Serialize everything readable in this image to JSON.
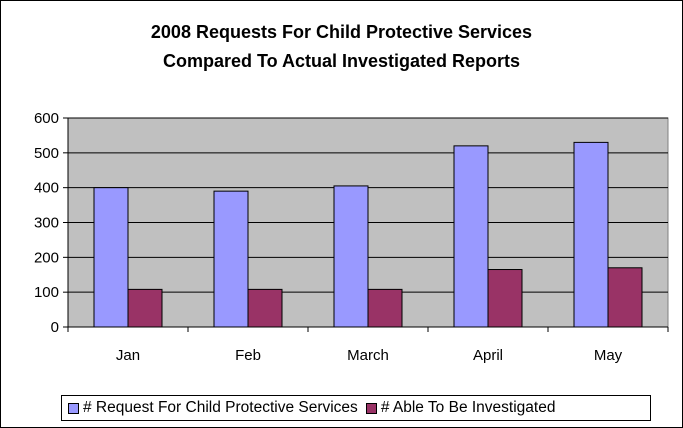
{
  "chart_data": {
    "type": "bar",
    "title": "2008 Requests For Child Protective Services",
    "subtitle": "Compared To Actual Investigated Reports",
    "xlabel": "",
    "ylabel": "",
    "categories": [
      "Jan",
      "Feb",
      "March",
      "April",
      "May"
    ],
    "series": [
      {
        "name": "# Request For Child Protective Services",
        "values": [
          400,
          390,
          405,
          520,
          530
        ],
        "color": "#9999ff"
      },
      {
        "name": "# Able To Be Investigated",
        "values": [
          108,
          108,
          108,
          165,
          170
        ],
        "color": "#993366"
      }
    ],
    "ylim": [
      0,
      600
    ],
    "yticks": [
      "0",
      "100",
      "200",
      "300",
      "400",
      "500",
      "600"
    ],
    "grid": true,
    "plot_background": "#c0c0c0",
    "legend_position": "bottom"
  }
}
